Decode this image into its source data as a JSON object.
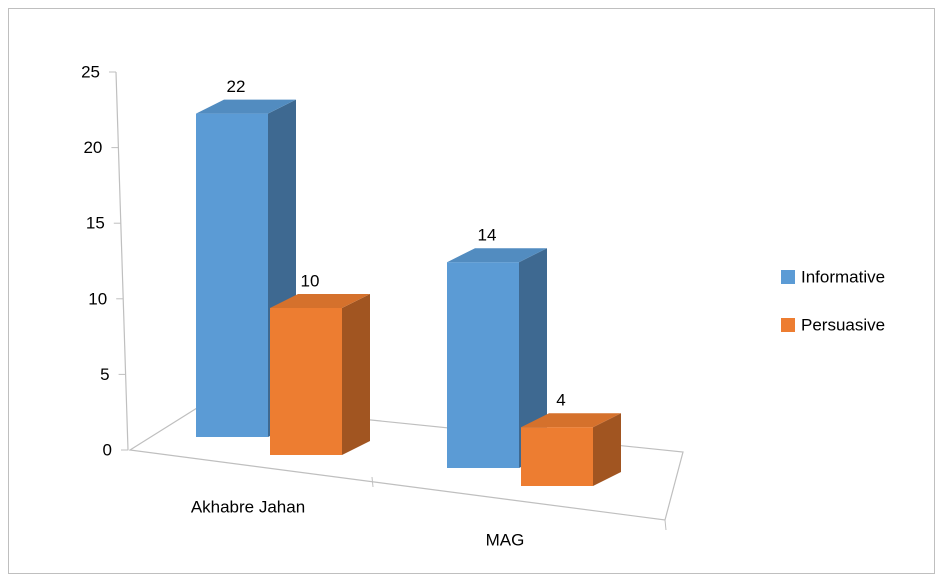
{
  "chart_data": {
    "type": "bar3d",
    "categories": [
      "Akhabre Jahan",
      "MAG"
    ],
    "series": [
      {
        "name": "Informative",
        "color": "#5b9bd5",
        "values": [
          22,
          14
        ]
      },
      {
        "name": "Persuasive",
        "color": "#ed7d31",
        "values": [
          10,
          4
        ]
      }
    ],
    "ylim": [
      0,
      25
    ],
    "yticks": [
      0,
      5,
      10,
      15,
      20,
      25
    ],
    "legend": "right",
    "data_labels": true
  }
}
